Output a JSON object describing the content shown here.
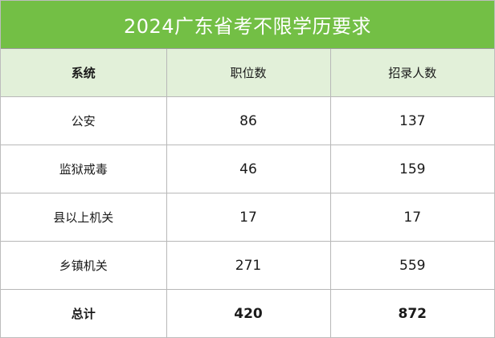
{
  "title": "2024广东省考不限学历要求",
  "headers": [
    "系统",
    "职位数",
    "招录人数"
  ],
  "rows": [
    {
      "system": "公安",
      "positions": "86",
      "recruits": "137"
    },
    {
      "system": "监狱戒毒",
      "positions": "46",
      "recruits": "159"
    },
    {
      "system": "县以上机关",
      "positions": "17",
      "recruits": "17"
    },
    {
      "system": "乡镇机关",
      "positions": "271",
      "recruits": "559"
    }
  ],
  "total": {
    "label": "总计",
    "positions": "420",
    "recruits": "872"
  },
  "colors": {
    "title_bg": "#73bf45",
    "header_bg": "#e2f0d9",
    "border": "#b8b8b8"
  }
}
